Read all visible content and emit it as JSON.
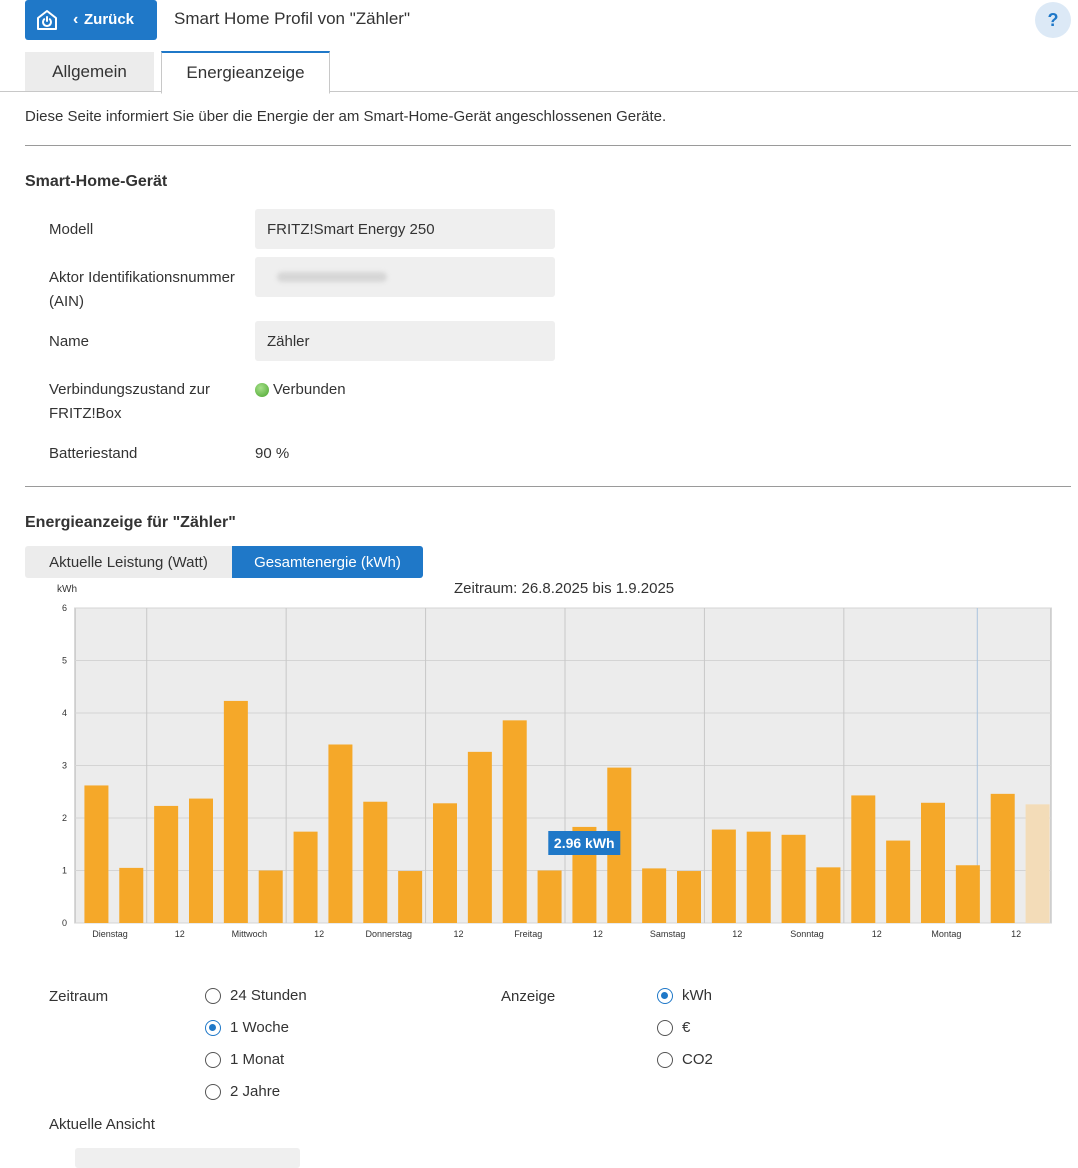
{
  "header": {
    "back_label": "Zurück",
    "title": "Smart Home Profil von \"Zähler\"",
    "help_label": "?"
  },
  "tabs": [
    {
      "label": "Allgemein",
      "active": false
    },
    {
      "label": "Energieanzeige",
      "active": true
    }
  ],
  "intro": "Diese Seite informiert Sie über die Energie der am Smart-Home-Gerät angeschlossenen Geräte.",
  "device": {
    "section_title": "Smart-Home-Gerät",
    "modell_label": "Modell",
    "modell_value": "FRITZ!Smart Energy 250",
    "ain_label_1": "Aktor Identifikationsnummer",
    "ain_label_2": "(AIN)",
    "name_label": "Name",
    "name_value": "Zähler",
    "conn_label_1": "Verbindungszustand zur",
    "conn_label_2": "FRITZ!Box",
    "conn_value": "Verbunden",
    "battery_label": "Batteriestand",
    "battery_value": "90 %"
  },
  "energy": {
    "section_title": "Energieanzeige für \"Zähler\"",
    "toggle": [
      "Aktuelle Leistung (Watt)",
      "Gesamtenergie (kWh)"
    ],
    "toggle_active": 1,
    "zeitraum_text": "Zeitraum: 26.8.2025 bis 1.9.2025"
  },
  "colors": {
    "accent": "#1f78c8",
    "bar": "#f5a829",
    "bar_current": "#f3dcb8",
    "plot_bg": "#ececec"
  },
  "chart_data": {
    "type": "bar",
    "ylabel": "kWh",
    "ylim": [
      0,
      6
    ],
    "yticks": [
      "0",
      "1",
      "2",
      "3",
      "4",
      "5",
      "6"
    ],
    "xtick_labels": [
      "Dienstag",
      "12",
      "Mittwoch",
      "12",
      "Donnerstag",
      "12",
      "Freitag",
      "12",
      "Samstag",
      "12",
      "Sonntag",
      "12",
      "Montag",
      "12"
    ],
    "values": [
      2.62,
      1.05,
      2.23,
      2.37,
      4.23,
      1.0,
      1.74,
      3.4,
      2.31,
      0.99,
      2.28,
      3.26,
      3.86,
      1.0,
      1.83,
      2.96,
      1.04,
      0.99,
      1.78,
      1.74,
      1.68,
      1.06,
      2.43,
      1.57,
      2.29,
      1.1,
      2.46,
      2.26
    ],
    "last_bar_current": true,
    "tooltip": {
      "bar_index": 15,
      "text": "2.96 kWh"
    },
    "grid": true
  },
  "settings": {
    "zeitraum_label": "Zeitraum",
    "zeitraum_options": [
      "24 Stunden",
      "1 Woche",
      "1 Monat",
      "2 Jahre"
    ],
    "zeitraum_selected": 1,
    "anzeige_label": "Anzeige",
    "anzeige_options": [
      "kWh",
      "€",
      "CO2"
    ],
    "anzeige_selected": 0,
    "aktuelle_ansicht_label": "Aktuelle Ansicht"
  }
}
